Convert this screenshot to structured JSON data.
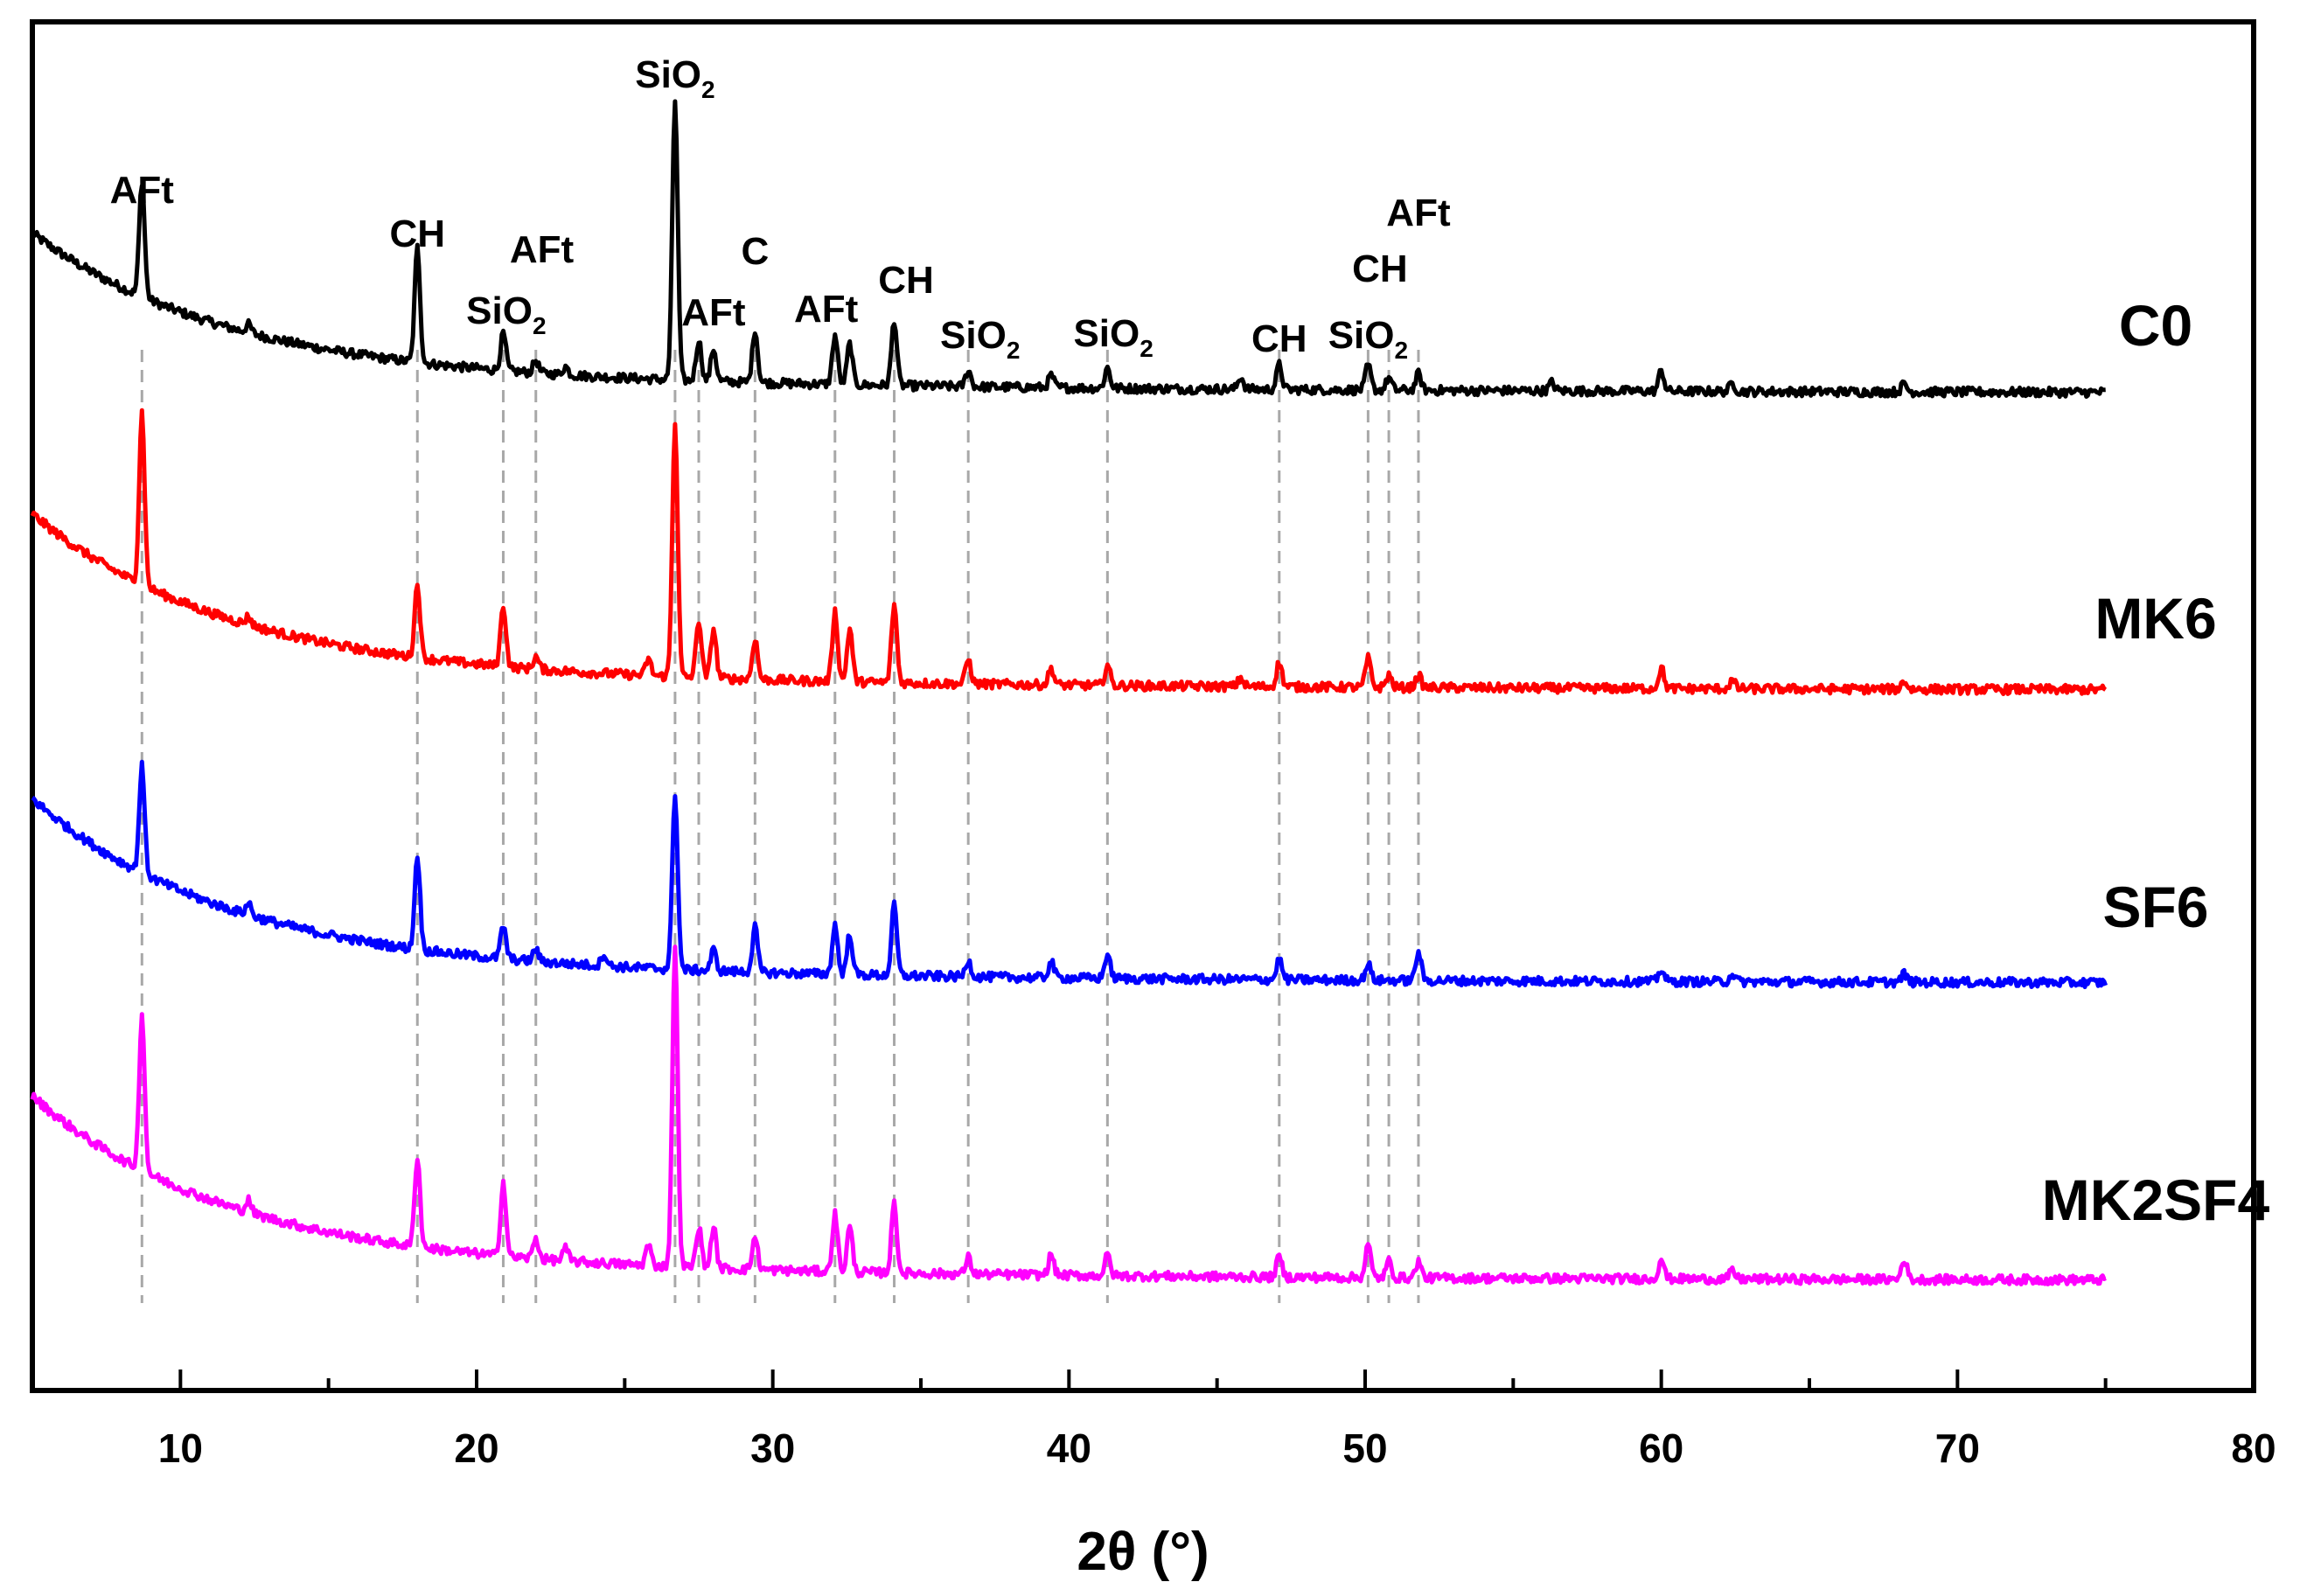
{
  "chart_data": {
    "type": "line",
    "title": "",
    "xlabel": "2θ (°)",
    "ylabel": "",
    "xlim": [
      5,
      80
    ],
    "x_ticks": [
      "10",
      "20",
      "30",
      "40",
      "50",
      "60",
      "70",
      "80"
    ],
    "x_range_of_data": [
      5,
      75
    ],
    "y_axis": "stacked intensity (arbitrary units, no tick labels)",
    "series": [
      {
        "name": "C0",
        "color": "#000000",
        "baseline": 0.0,
        "start_level": 0.34,
        "peaks": [
          [
            8.7,
            0.28
          ],
          [
            12.3,
            0.02
          ],
          [
            18.0,
            0.28
          ],
          [
            20.9,
            0.09
          ],
          [
            22.0,
            0.03
          ],
          [
            23.0,
            0.02
          ],
          [
            26.7,
            0.68
          ],
          [
            27.5,
            0.1
          ],
          [
            28.0,
            0.08
          ],
          [
            29.4,
            0.13
          ],
          [
            32.1,
            0.12
          ],
          [
            32.6,
            0.1
          ],
          [
            34.1,
            0.16
          ],
          [
            36.6,
            0.04
          ],
          [
            39.4,
            0.03
          ],
          [
            41.3,
            0.05
          ],
          [
            45.8,
            0.03
          ],
          [
            47.1,
            0.06
          ],
          [
            50.1,
            0.06
          ],
          [
            50.8,
            0.03
          ],
          [
            51.8,
            0.04
          ],
          [
            56.3,
            0.02
          ],
          [
            60.0,
            0.05
          ],
          [
            62.4,
            0.02
          ],
          [
            68.2,
            0.02
          ]
        ]
      },
      {
        "name": "MK6",
        "color": "#ff0000",
        "baseline": 0.0,
        "start_level": 0.38,
        "peaks": [
          [
            8.7,
            0.42
          ],
          [
            12.3,
            0.02
          ],
          [
            18.0,
            0.18
          ],
          [
            20.9,
            0.15
          ],
          [
            22.0,
            0.03
          ],
          [
            25.8,
            0.04
          ],
          [
            26.7,
            0.62
          ],
          [
            27.5,
            0.14
          ],
          [
            28.0,
            0.12
          ],
          [
            29.4,
            0.1
          ],
          [
            32.1,
            0.17
          ],
          [
            32.6,
            0.13
          ],
          [
            34.1,
            0.19
          ],
          [
            36.6,
            0.06
          ],
          [
            39.4,
            0.04
          ],
          [
            41.3,
            0.05
          ],
          [
            45.8,
            0.02
          ],
          [
            47.1,
            0.06
          ],
          [
            50.1,
            0.07
          ],
          [
            50.8,
            0.03
          ],
          [
            51.8,
            0.03
          ],
          [
            60.0,
            0.05
          ],
          [
            62.4,
            0.02
          ],
          [
            68.2,
            0.02
          ]
        ]
      },
      {
        "name": "SF6",
        "color": "#0000ff",
        "baseline": 0.0,
        "start_level": 0.4,
        "peaks": [
          [
            8.7,
            0.26
          ],
          [
            12.3,
            0.03
          ],
          [
            18.0,
            0.23
          ],
          [
            20.9,
            0.08
          ],
          [
            22.0,
            0.03
          ],
          [
            24.3,
            0.03
          ],
          [
            26.7,
            0.43
          ],
          [
            28.0,
            0.05
          ],
          [
            29.4,
            0.11
          ],
          [
            32.1,
            0.12
          ],
          [
            32.6,
            0.1
          ],
          [
            34.1,
            0.17
          ],
          [
            36.6,
            0.04
          ],
          [
            39.4,
            0.04
          ],
          [
            41.3,
            0.06
          ],
          [
            47.1,
            0.05
          ],
          [
            50.1,
            0.04
          ],
          [
            51.8,
            0.07
          ],
          [
            60.0,
            0.03
          ],
          [
            62.4,
            0.02
          ],
          [
            68.2,
            0.02
          ]
        ]
      },
      {
        "name": "MK2SF4",
        "color": "#ff00ff",
        "baseline": 0.0,
        "start_level": 0.4,
        "peaks": [
          [
            8.7,
            0.38
          ],
          [
            12.3,
            0.03
          ],
          [
            18.0,
            0.22
          ],
          [
            20.9,
            0.18
          ],
          [
            22.0,
            0.05
          ],
          [
            23.0,
            0.03
          ],
          [
            25.8,
            0.05
          ],
          [
            26.7,
            0.78
          ],
          [
            27.5,
            0.1
          ],
          [
            28.0,
            0.1
          ],
          [
            29.4,
            0.08
          ],
          [
            32.1,
            0.14
          ],
          [
            32.6,
            0.11
          ],
          [
            34.1,
            0.17
          ],
          [
            36.6,
            0.04
          ],
          [
            39.4,
            0.05
          ],
          [
            41.3,
            0.05
          ],
          [
            47.1,
            0.05
          ],
          [
            50.1,
            0.08
          ],
          [
            50.8,
            0.04
          ],
          [
            51.8,
            0.04
          ],
          [
            60.0,
            0.05
          ],
          [
            62.4,
            0.02
          ],
          [
            68.2,
            0.05
          ]
        ]
      }
    ],
    "reference_lines": [
      8.7,
      18.0,
      20.9,
      22.0,
      26.7,
      27.5,
      29.4,
      32.1,
      34.1,
      36.6,
      41.3,
      47.1,
      50.1,
      50.8,
      51.8
    ],
    "annotations": [
      {
        "text": "AFt",
        "sub": "",
        "x": 8.7
      },
      {
        "text": "CH",
        "sub": "",
        "x": 18.0
      },
      {
        "text": "AFt",
        "sub": "",
        "x": 22.2
      },
      {
        "text": "SiO",
        "sub": "2",
        "x": 21.0
      },
      {
        "text": "SiO",
        "sub": "2",
        "x": 26.7
      },
      {
        "text": "AFt",
        "sub": "",
        "x": 28.0
      },
      {
        "text": "C",
        "sub": "",
        "x": 29.4
      },
      {
        "text": "AFt",
        "sub": "",
        "x": 31.8
      },
      {
        "text": "CH",
        "sub": "",
        "x": 34.5
      },
      {
        "text": "SiO",
        "sub": "2",
        "x": 37.0
      },
      {
        "text": "SiO",
        "sub": "2",
        "x": 41.5
      },
      {
        "text": "CH",
        "sub": "",
        "x": 47.1
      },
      {
        "text": "SiO",
        "sub": "2",
        "x": 50.1
      },
      {
        "text": "CH",
        "sub": "",
        "x": 50.5
      },
      {
        "text": "AFt",
        "sub": "",
        "x": 51.8
      }
    ]
  }
}
